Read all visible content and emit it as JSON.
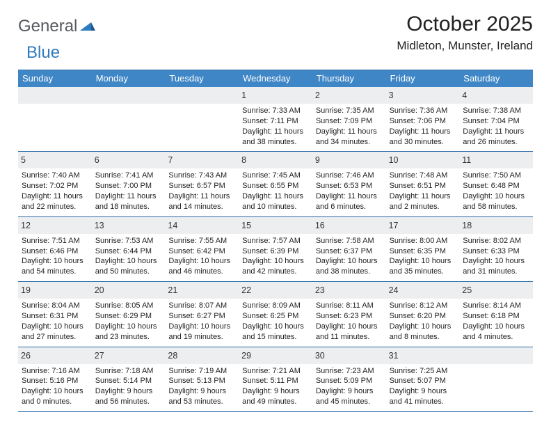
{
  "brand": {
    "name_part1": "General",
    "name_part2": "Blue"
  },
  "title": "October 2025",
  "location": "Midleton, Munster, Ireland",
  "colors": {
    "header_bg": "#3f86c6",
    "header_border": "#2b6aa8",
    "daynum_bg": "#eceeef",
    "text": "#222222",
    "logo_gray": "#5a6066",
    "logo_blue": "#2f7bbf"
  },
  "day_headers": [
    "Sunday",
    "Monday",
    "Tuesday",
    "Wednesday",
    "Thursday",
    "Friday",
    "Saturday"
  ],
  "weeks": [
    [
      {
        "n": "",
        "sunrise": "",
        "sunset": "",
        "daylight": ""
      },
      {
        "n": "",
        "sunrise": "",
        "sunset": "",
        "daylight": ""
      },
      {
        "n": "",
        "sunrise": "",
        "sunset": "",
        "daylight": ""
      },
      {
        "n": "1",
        "sunrise": "Sunrise: 7:33 AM",
        "sunset": "Sunset: 7:11 PM",
        "daylight": "Daylight: 11 hours and 38 minutes."
      },
      {
        "n": "2",
        "sunrise": "Sunrise: 7:35 AM",
        "sunset": "Sunset: 7:09 PM",
        "daylight": "Daylight: 11 hours and 34 minutes."
      },
      {
        "n": "3",
        "sunrise": "Sunrise: 7:36 AM",
        "sunset": "Sunset: 7:06 PM",
        "daylight": "Daylight: 11 hours and 30 minutes."
      },
      {
        "n": "4",
        "sunrise": "Sunrise: 7:38 AM",
        "sunset": "Sunset: 7:04 PM",
        "daylight": "Daylight: 11 hours and 26 minutes."
      }
    ],
    [
      {
        "n": "5",
        "sunrise": "Sunrise: 7:40 AM",
        "sunset": "Sunset: 7:02 PM",
        "daylight": "Daylight: 11 hours and 22 minutes."
      },
      {
        "n": "6",
        "sunrise": "Sunrise: 7:41 AM",
        "sunset": "Sunset: 7:00 PM",
        "daylight": "Daylight: 11 hours and 18 minutes."
      },
      {
        "n": "7",
        "sunrise": "Sunrise: 7:43 AM",
        "sunset": "Sunset: 6:57 PM",
        "daylight": "Daylight: 11 hours and 14 minutes."
      },
      {
        "n": "8",
        "sunrise": "Sunrise: 7:45 AM",
        "sunset": "Sunset: 6:55 PM",
        "daylight": "Daylight: 11 hours and 10 minutes."
      },
      {
        "n": "9",
        "sunrise": "Sunrise: 7:46 AM",
        "sunset": "Sunset: 6:53 PM",
        "daylight": "Daylight: 11 hours and 6 minutes."
      },
      {
        "n": "10",
        "sunrise": "Sunrise: 7:48 AM",
        "sunset": "Sunset: 6:51 PM",
        "daylight": "Daylight: 11 hours and 2 minutes."
      },
      {
        "n": "11",
        "sunrise": "Sunrise: 7:50 AM",
        "sunset": "Sunset: 6:48 PM",
        "daylight": "Daylight: 10 hours and 58 minutes."
      }
    ],
    [
      {
        "n": "12",
        "sunrise": "Sunrise: 7:51 AM",
        "sunset": "Sunset: 6:46 PM",
        "daylight": "Daylight: 10 hours and 54 minutes."
      },
      {
        "n": "13",
        "sunrise": "Sunrise: 7:53 AM",
        "sunset": "Sunset: 6:44 PM",
        "daylight": "Daylight: 10 hours and 50 minutes."
      },
      {
        "n": "14",
        "sunrise": "Sunrise: 7:55 AM",
        "sunset": "Sunset: 6:42 PM",
        "daylight": "Daylight: 10 hours and 46 minutes."
      },
      {
        "n": "15",
        "sunrise": "Sunrise: 7:57 AM",
        "sunset": "Sunset: 6:39 PM",
        "daylight": "Daylight: 10 hours and 42 minutes."
      },
      {
        "n": "16",
        "sunrise": "Sunrise: 7:58 AM",
        "sunset": "Sunset: 6:37 PM",
        "daylight": "Daylight: 10 hours and 38 minutes."
      },
      {
        "n": "17",
        "sunrise": "Sunrise: 8:00 AM",
        "sunset": "Sunset: 6:35 PM",
        "daylight": "Daylight: 10 hours and 35 minutes."
      },
      {
        "n": "18",
        "sunrise": "Sunrise: 8:02 AM",
        "sunset": "Sunset: 6:33 PM",
        "daylight": "Daylight: 10 hours and 31 minutes."
      }
    ],
    [
      {
        "n": "19",
        "sunrise": "Sunrise: 8:04 AM",
        "sunset": "Sunset: 6:31 PM",
        "daylight": "Daylight: 10 hours and 27 minutes."
      },
      {
        "n": "20",
        "sunrise": "Sunrise: 8:05 AM",
        "sunset": "Sunset: 6:29 PM",
        "daylight": "Daylight: 10 hours and 23 minutes."
      },
      {
        "n": "21",
        "sunrise": "Sunrise: 8:07 AM",
        "sunset": "Sunset: 6:27 PM",
        "daylight": "Daylight: 10 hours and 19 minutes."
      },
      {
        "n": "22",
        "sunrise": "Sunrise: 8:09 AM",
        "sunset": "Sunset: 6:25 PM",
        "daylight": "Daylight: 10 hours and 15 minutes."
      },
      {
        "n": "23",
        "sunrise": "Sunrise: 8:11 AM",
        "sunset": "Sunset: 6:23 PM",
        "daylight": "Daylight: 10 hours and 11 minutes."
      },
      {
        "n": "24",
        "sunrise": "Sunrise: 8:12 AM",
        "sunset": "Sunset: 6:20 PM",
        "daylight": "Daylight: 10 hours and 8 minutes."
      },
      {
        "n": "25",
        "sunrise": "Sunrise: 8:14 AM",
        "sunset": "Sunset: 6:18 PM",
        "daylight": "Daylight: 10 hours and 4 minutes."
      }
    ],
    [
      {
        "n": "26",
        "sunrise": "Sunrise: 7:16 AM",
        "sunset": "Sunset: 5:16 PM",
        "daylight": "Daylight: 10 hours and 0 minutes."
      },
      {
        "n": "27",
        "sunrise": "Sunrise: 7:18 AM",
        "sunset": "Sunset: 5:14 PM",
        "daylight": "Daylight: 9 hours and 56 minutes."
      },
      {
        "n": "28",
        "sunrise": "Sunrise: 7:19 AM",
        "sunset": "Sunset: 5:13 PM",
        "daylight": "Daylight: 9 hours and 53 minutes."
      },
      {
        "n": "29",
        "sunrise": "Sunrise: 7:21 AM",
        "sunset": "Sunset: 5:11 PM",
        "daylight": "Daylight: 9 hours and 49 minutes."
      },
      {
        "n": "30",
        "sunrise": "Sunrise: 7:23 AM",
        "sunset": "Sunset: 5:09 PM",
        "daylight": "Daylight: 9 hours and 45 minutes."
      },
      {
        "n": "31",
        "sunrise": "Sunrise: 7:25 AM",
        "sunset": "Sunset: 5:07 PM",
        "daylight": "Daylight: 9 hours and 41 minutes."
      },
      {
        "n": "",
        "sunrise": "",
        "sunset": "",
        "daylight": ""
      }
    ]
  ]
}
